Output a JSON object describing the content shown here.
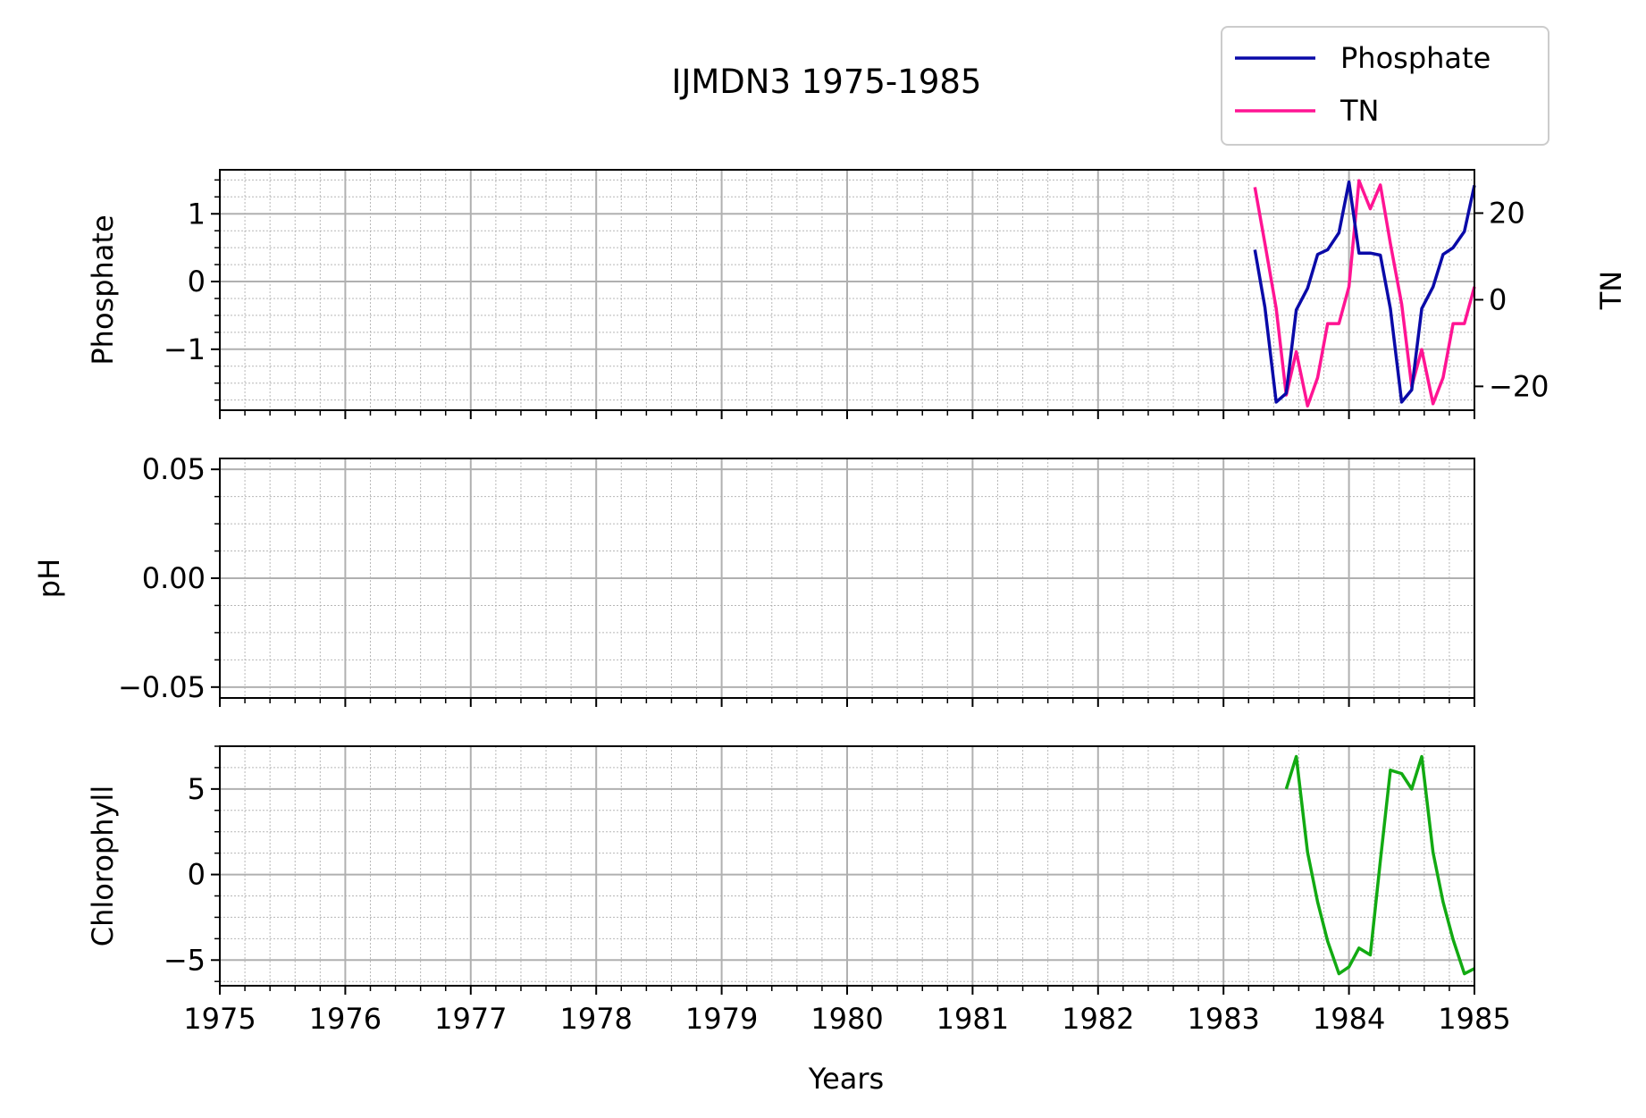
{
  "chart_data": {
    "type": "line",
    "title": "IJMDN3 1975-1985",
    "xlabel": "Years",
    "xlim": [
      1975,
      1985
    ],
    "xticks": [
      1975,
      1976,
      1977,
      1978,
      1979,
      1980,
      1981,
      1982,
      1983,
      1984,
      1985
    ],
    "xtick_labels": [
      "1975",
      "1976",
      "1977",
      "1978",
      "1979",
      "1980",
      "1981",
      "1982",
      "1983",
      "1984",
      "1985"
    ],
    "grid": true,
    "legend": {
      "location": "top-right",
      "entries": [
        {
          "name": "Phosphate",
          "color": "#0a0aa8"
        },
        {
          "name": "TN",
          "color": "#ff1493"
        }
      ]
    },
    "panels": [
      {
        "ylabel": "Phosphate",
        "ylim": [
          -1.9,
          1.65
        ],
        "yticks": [
          -1,
          0,
          1
        ],
        "ytick_labels": [
          "−1",
          "0",
          "1"
        ],
        "series": [
          {
            "name": "Phosphate",
            "color": "#0a0aa8",
            "x": [
              1983.25,
              1983.33,
              1983.42,
              1983.5,
              1983.58,
              1983.67,
              1983.75,
              1983.83,
              1983.92,
              1984.0,
              1984.08,
              1984.17,
              1984.25,
              1984.33,
              1984.42,
              1984.5,
              1984.58,
              1984.67,
              1984.75,
              1984.83,
              1984.92,
              1985.0
            ],
            "y": [
              0.47,
              -0.38,
              -1.78,
              -1.65,
              -0.42,
              -0.1,
              0.4,
              0.47,
              0.72,
              1.47,
              0.42,
              0.42,
              0.39,
              -0.4,
              -1.78,
              -1.6,
              -0.4,
              -0.08,
              0.4,
              0.5,
              0.74,
              1.42
            ]
          }
        ],
        "secondary_axis": {
          "ylabel": "TN",
          "ylim": [
            -25.5,
            30
          ],
          "yticks": [
            -20,
            0,
            20
          ],
          "ytick_labels": [
            "−20",
            "0",
            "20"
          ],
          "series": [
            {
              "name": "TN",
              "color": "#ff1493",
              "x": [
                1983.25,
                1983.33,
                1983.42,
                1983.5,
                1983.58,
                1983.67,
                1983.75,
                1983.83,
                1983.92,
                1984.0,
                1984.08,
                1984.17,
                1984.25,
                1984.33,
                1984.42,
                1984.5,
                1984.58,
                1984.67,
                1984.75,
                1984.83,
                1984.92,
                1985.0
              ],
              "y": [
                26,
                13,
                -2,
                -22,
                -12,
                -24.5,
                -18,
                -5.5,
                -5.5,
                3,
                27.5,
                21,
                26.5,
                13,
                -1,
                -20,
                -11.5,
                -24,
                -18,
                -5.5,
                -5.5,
                3
              ]
            }
          ]
        }
      },
      {
        "ylabel": "pH",
        "ylim": [
          -0.055,
          0.055
        ],
        "yticks": [
          -0.05,
          0.0,
          0.05
        ],
        "ytick_labels": [
          "−0.05",
          "0.00",
          "0.05"
        ],
        "series": []
      },
      {
        "ylabel": "Chlorophyll",
        "ylim": [
          -6.5,
          7.5
        ],
        "yticks": [
          -5,
          0,
          5
        ],
        "ytick_labels": [
          "−5",
          "0",
          "5"
        ],
        "series": [
          {
            "name": "Chlorophyll",
            "color": "#12aa12",
            "x": [
              1983.5,
              1983.58,
              1983.67,
              1983.75,
              1983.83,
              1983.92,
              1984.0,
              1984.08,
              1984.17,
              1984.25,
              1984.33,
              1984.42,
              1984.5,
              1984.58,
              1984.67,
              1984.75,
              1984.83,
              1984.92,
              1985.0
            ],
            "y": [
              5.0,
              6.9,
              1.3,
              -1.6,
              -3.9,
              -5.8,
              -5.4,
              -4.3,
              -4.7,
              0.8,
              6.1,
              5.9,
              5.0,
              6.9,
              1.3,
              -1.6,
              -3.8,
              -5.8,
              -5.5
            ]
          }
        ]
      }
    ]
  }
}
